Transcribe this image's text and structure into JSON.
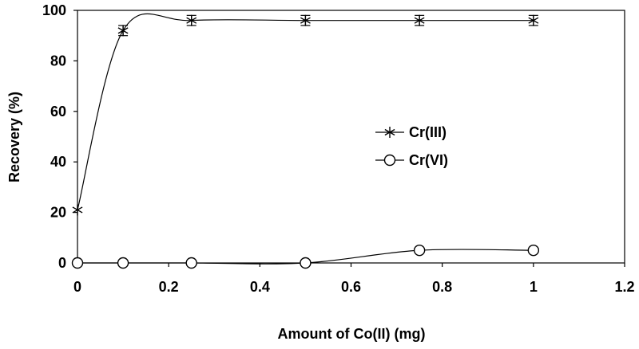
{
  "chart_data": {
    "type": "line",
    "title": "",
    "xlabel": "Amount of Co(II) (mg)",
    "ylabel": "Recovery (%)",
    "xlim": [
      0,
      1.2
    ],
    "ylim": [
      0,
      100
    ],
    "x_ticks": [
      "0",
      "0.2",
      "0.4",
      "0.6",
      "0.8",
      "1",
      "1.2"
    ],
    "y_ticks": [
      "0",
      "20",
      "40",
      "60",
      "80",
      "100"
    ],
    "grid": false,
    "legend_position": "center-right",
    "series": [
      {
        "name": "Cr(III)",
        "marker": "asterisk",
        "color": "#000000",
        "x": [
          0,
          0.1,
          0.25,
          0.5,
          0.75,
          1.0
        ],
        "y": [
          21,
          92,
          96,
          96,
          96,
          96
        ],
        "error": [
          0,
          2,
          2,
          2,
          2,
          2
        ]
      },
      {
        "name": "Cr(VI)",
        "marker": "circle",
        "color": "#000000",
        "x": [
          0,
          0.1,
          0.25,
          0.5,
          0.75,
          1.0
        ],
        "y": [
          0,
          0,
          0,
          0,
          5,
          5
        ],
        "error": [
          0,
          0,
          0,
          0,
          0,
          0
        ]
      }
    ]
  }
}
